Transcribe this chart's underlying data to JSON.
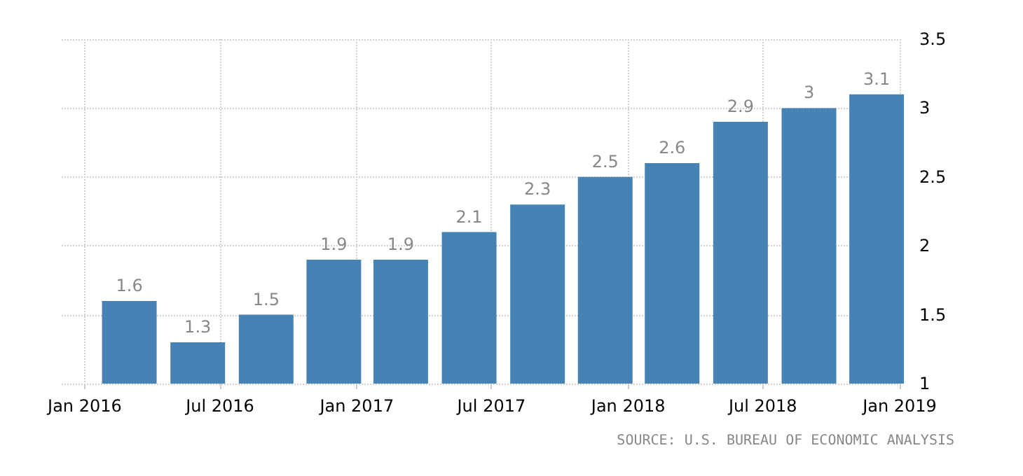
{
  "chart_data": {
    "type": "bar",
    "x": [
      "2016-03",
      "2016-06",
      "2016-09",
      "2016-12",
      "2017-03",
      "2017-06",
      "2017-09",
      "2017-12",
      "2018-03",
      "2018-06",
      "2018-09",
      "2018-12"
    ],
    "values": [
      1.6,
      1.3,
      1.5,
      1.9,
      1.9,
      2.1,
      2.3,
      2.5,
      2.6,
      2.9,
      3,
      3.1
    ],
    "color": "#4682b4",
    "data_labels": true,
    "xlim": [
      "2015-12",
      "2019-01"
    ],
    "xticks": [
      {
        "value": "2016-01",
        "label": "Jan 2016"
      },
      {
        "value": "2016-07",
        "label": "Jul 2016"
      },
      {
        "value": "2017-01",
        "label": "Jan 2017"
      },
      {
        "value": "2017-07",
        "label": "Jul 2017"
      },
      {
        "value": "2018-01",
        "label": "Jan 2018"
      },
      {
        "value": "2018-07",
        "label": "Jul 2018"
      },
      {
        "value": "2019-01",
        "label": "Jan 2019"
      }
    ],
    "ylim": [
      1,
      3.5
    ],
    "yticks": [
      1,
      1.5,
      2,
      2.5,
      3,
      3.5
    ],
    "grid": true,
    "annotations": [
      "SOURCE: U.S. BUREAU OF ECONOMIC ANALYSIS"
    ]
  }
}
